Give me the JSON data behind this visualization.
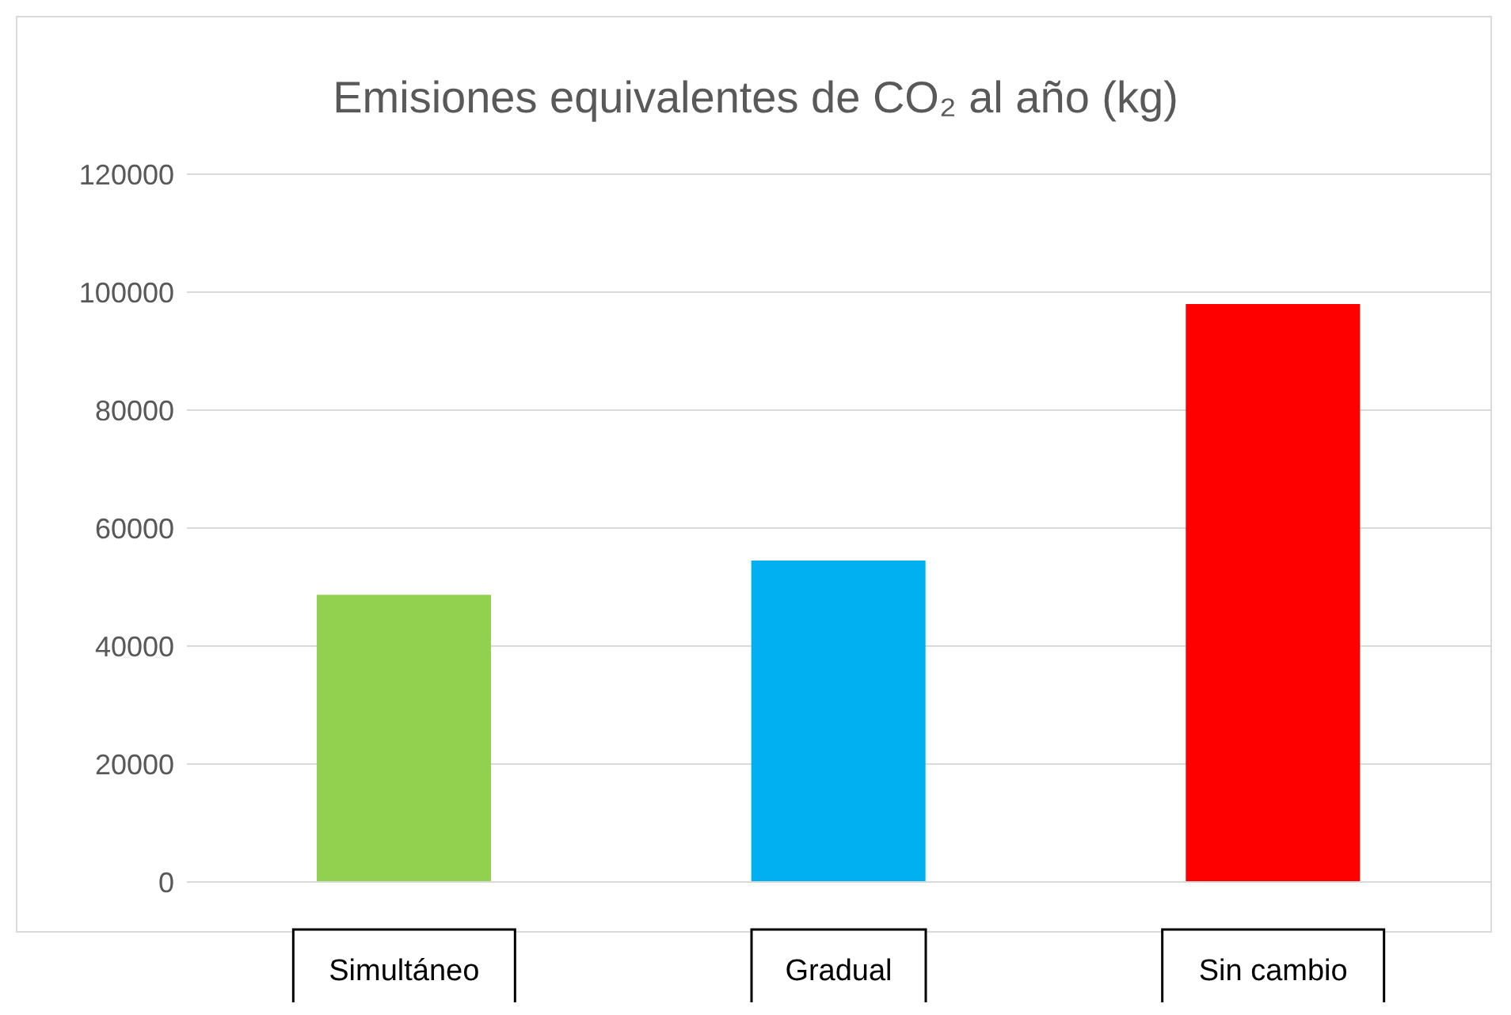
{
  "chart_data": {
    "type": "bar",
    "title": "Emisiones equivalentes de CO₂ al año (kg)",
    "categories": [
      "Simultáneo",
      "Gradual",
      "Sin cambio"
    ],
    "values": [
      48700,
      54500,
      98000
    ],
    "colors": [
      "#92d050",
      "#00b0f0",
      "#ff0000"
    ],
    "ylim": [
      0,
      120000
    ],
    "yticks": [
      0,
      20000,
      40000,
      60000,
      80000,
      100000,
      120000
    ],
    "grid": "y"
  }
}
